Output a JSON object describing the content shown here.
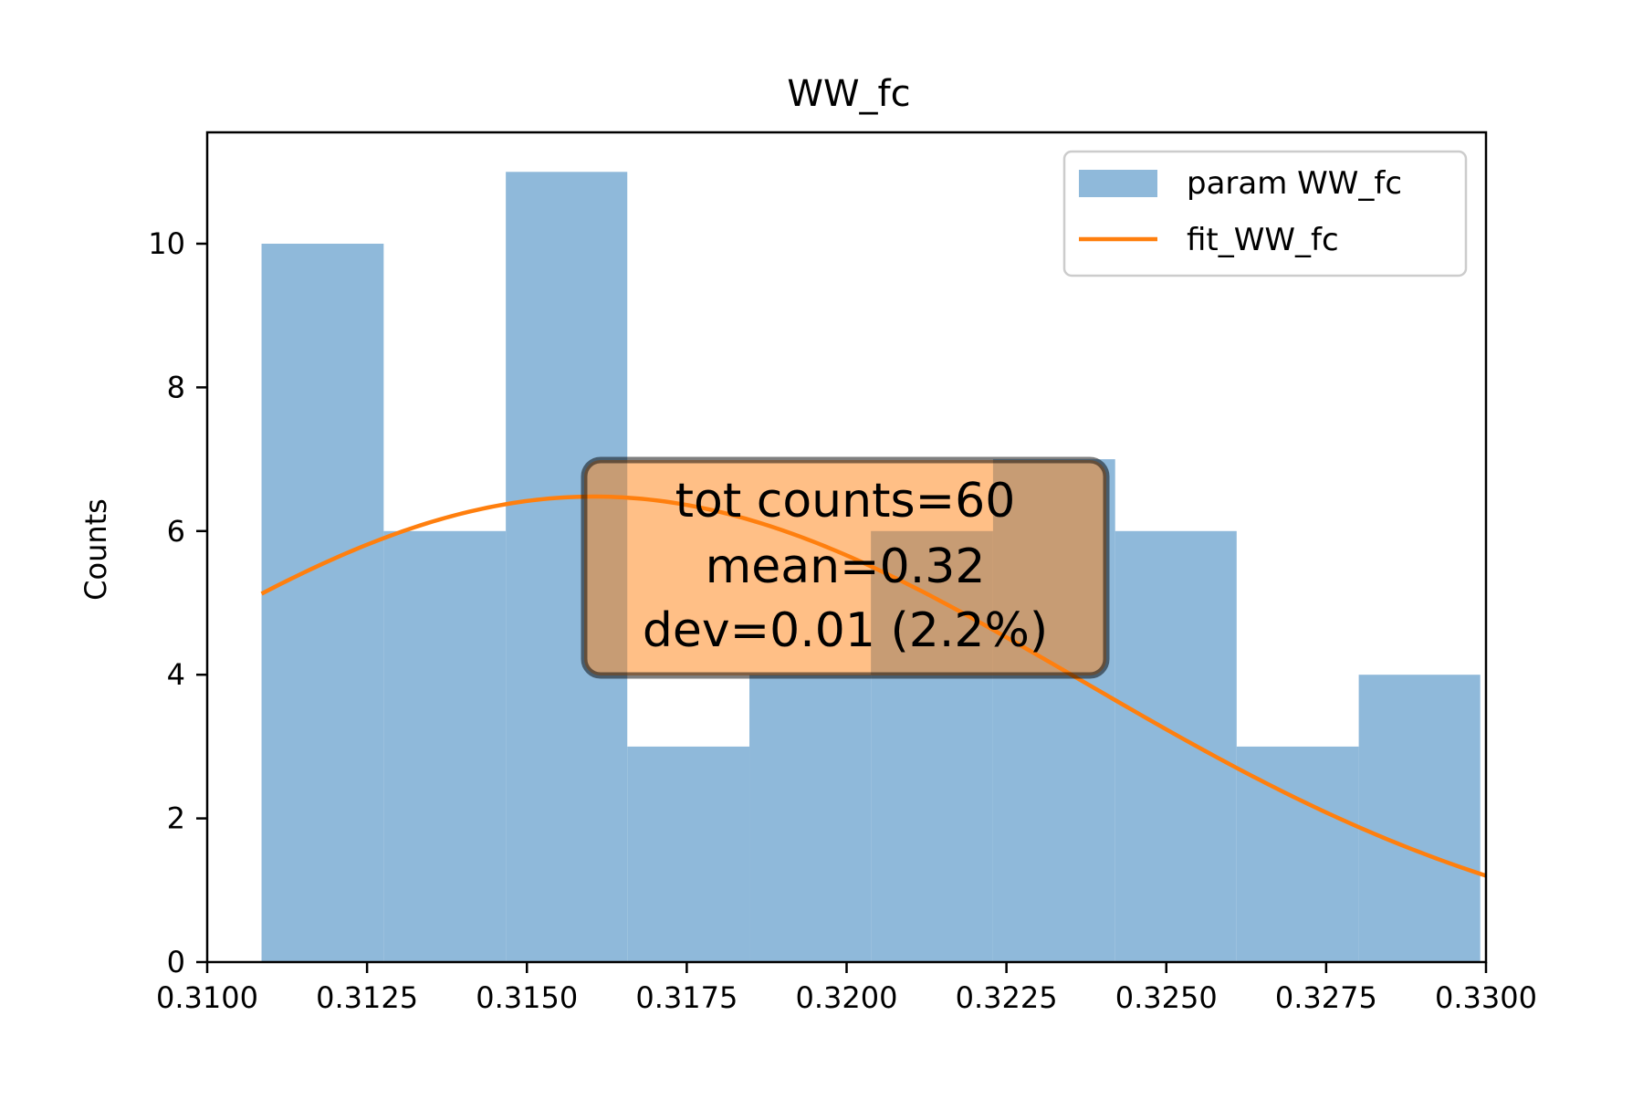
{
  "chart_data": {
    "type": "bar",
    "title": "WW_fc",
    "xlabel": "",
    "ylabel": "Counts",
    "xlim": [
      0.31,
      0.33
    ],
    "ylim": [
      0,
      11.55
    ],
    "xticks": [
      "0.3100",
      "0.3125",
      "0.3150",
      "0.3175",
      "0.3200",
      "0.3225",
      "0.3250",
      "0.3275",
      "0.3300"
    ],
    "yticks": [
      "0",
      "2",
      "4",
      "6",
      "8",
      "10"
    ],
    "grid": false,
    "legend_placement": "top-right",
    "histogram": {
      "name": "param WW_fc",
      "bin_edges": [
        0.31085,
        0.31276,
        0.31467,
        0.31657,
        0.31848,
        0.32038,
        0.32229,
        0.3242,
        0.3261,
        0.32801,
        0.32991
      ],
      "counts": [
        10,
        6,
        11,
        3,
        4,
        6,
        7,
        6,
        3,
        4
      ],
      "color": "#8fb9da"
    },
    "fit": {
      "name": "fit_WW_fc",
      "amplitude": 6.48,
      "mean": 0.31605,
      "sigma": 0.0076,
      "x_start": 0.31085,
      "x_end": 0.33,
      "color": "#ff7f0e"
    },
    "annotation": {
      "lines": [
        "tot counts=60",
        "mean=0.32",
        "dev=0.01 (2.2%)"
      ],
      "box_color": "#ff7f0e",
      "placement": "center"
    }
  }
}
